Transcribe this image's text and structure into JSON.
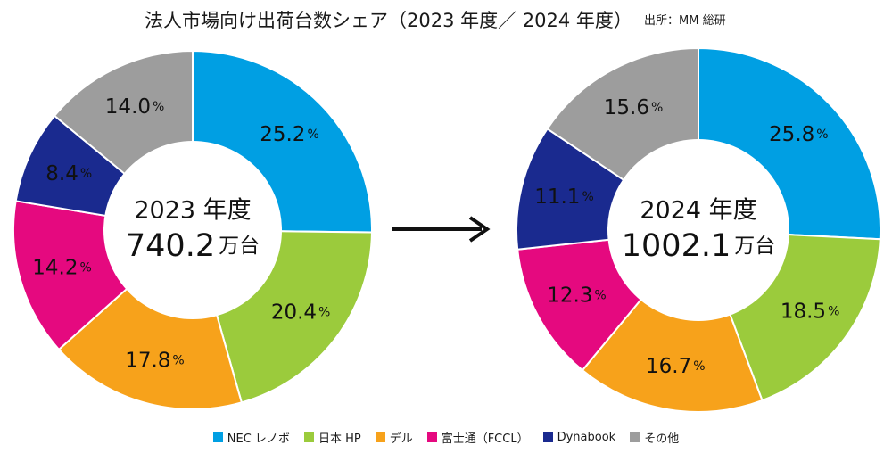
{
  "title": "法人市場向け出荷台数シェア（2023 年度／ 2024 年度）",
  "source": "出所：MM 総研",
  "colors": {
    "NEC レノボ": "#009fe3",
    "日本 HP": "#9bcb3c",
    "デル": "#f7a21b",
    "富士通（FCCL）": "#e5097f",
    "Dynabook": "#1a2a8f",
    "その他": "#9d9d9d"
  },
  "legend": [
    "NEC レノボ",
    "日本 HP",
    "デル",
    "富士通（FCCL）",
    "Dynabook",
    "その他"
  ],
  "chart_data": [
    {
      "type": "pie",
      "center_year": "2023 年度",
      "center_total": "740.2",
      "center_unit": "万台",
      "categories": [
        "NEC レノボ",
        "日本 HP",
        "デル",
        "富士通（FCCL）",
        "Dynabook",
        "その他"
      ],
      "values": [
        25.2,
        20.4,
        17.8,
        14.2,
        8.4,
        14.0
      ],
      "labels": [
        "25.2",
        "20.4",
        "17.8",
        "14.2",
        "8.4",
        "14.0"
      ],
      "unit": "%"
    },
    {
      "type": "pie",
      "center_year": "2024 年度",
      "center_total": "1002.1",
      "center_unit": "万台",
      "categories": [
        "NEC レノボ",
        "日本 HP",
        "デル",
        "富士通（FCCL）",
        "Dynabook",
        "その他"
      ],
      "values": [
        25.8,
        18.5,
        16.7,
        12.3,
        11.1,
        15.6
      ],
      "labels": [
        "25.8",
        "18.5",
        "16.7",
        "12.3",
        "11.1",
        "15.6"
      ],
      "unit": "%"
    }
  ]
}
